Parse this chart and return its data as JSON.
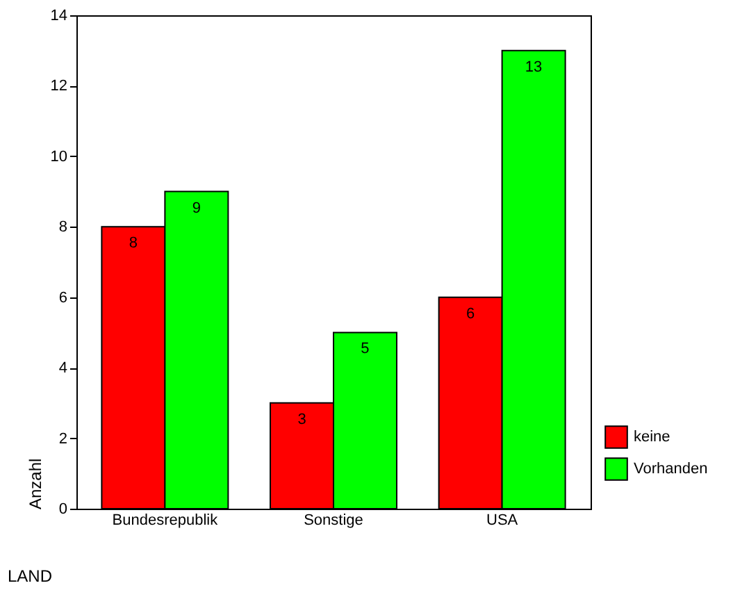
{
  "chart_data": {
    "type": "bar",
    "xlabel": "LAND",
    "ylabel": "Anzahl",
    "categories": [
      "Bundesrepublik",
      "Sonstige",
      "USA"
    ],
    "series": [
      {
        "name": "keine",
        "color": "#ff0000",
        "values": [
          8,
          3,
          6
        ]
      },
      {
        "name": "Vorhanden",
        "color": "#00ff00",
        "values": [
          9,
          5,
          13
        ]
      }
    ],
    "ylim": [
      0,
      14
    ],
    "yticks": [
      0,
      2,
      4,
      6,
      8,
      10,
      12,
      14
    ],
    "grid": false,
    "legend": "bottom right",
    "data_labels": true
  }
}
